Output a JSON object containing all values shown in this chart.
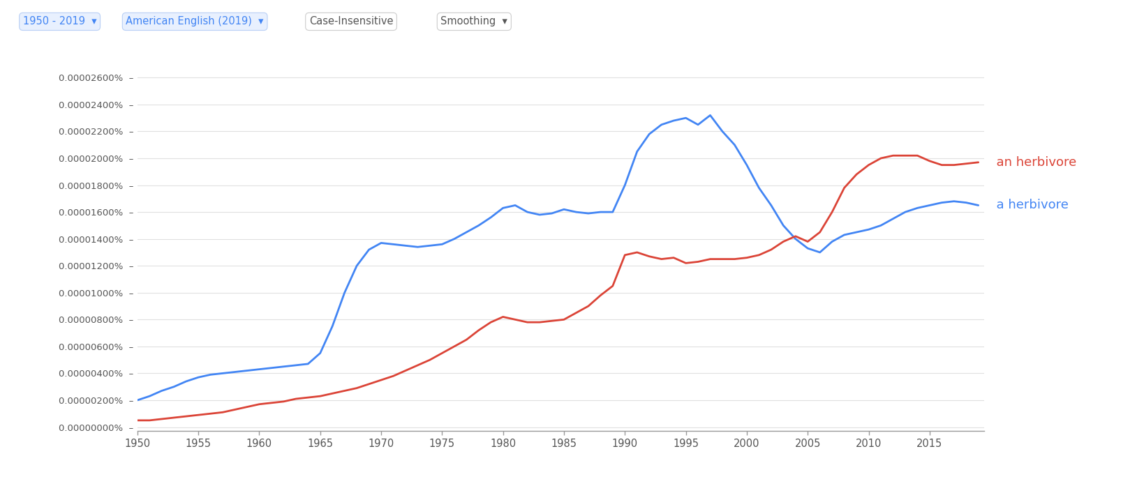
{
  "blue_color": "#4285f4",
  "red_color": "#db4437",
  "grid_color": "#e0e0e0",
  "axis_color": "#999999",
  "tick_label_color": "#555555",
  "background_color": "#ffffff",
  "label_an": "an herbivore",
  "label_a": "a herbivore",
  "toolbar_bg": "#f8f9fa",
  "toolbar_border": "#dadce0",
  "btn1_text": "1950 - 2019",
  "btn2_text": "American English (2019)",
  "btn3_text": "Case-Insensitive",
  "btn4_text": "Smoothing",
  "btn_color": "#e8f0fe",
  "btn_text_color": "#4285f4",
  "btn3_text_color": "#444444",
  "xticks": [
    1950,
    1955,
    1960,
    1965,
    1970,
    1975,
    1980,
    1985,
    1990,
    1995,
    2000,
    2005,
    2010,
    2015
  ],
  "ytick_vals": [
    0.0,
    2e-08,
    4e-08,
    6e-08,
    8e-08,
    1e-07,
    1.2e-07,
    1.4e-07,
    1.6e-07,
    1.8e-07,
    2e-07,
    2.2e-07,
    2.4e-07,
    2.6e-07
  ],
  "a_herbivore_x": [
    1950,
    1951,
    1952,
    1953,
    1954,
    1955,
    1956,
    1957,
    1958,
    1959,
    1960,
    1961,
    1962,
    1963,
    1964,
    1965,
    1966,
    1967,
    1968,
    1969,
    1970,
    1971,
    1972,
    1973,
    1974,
    1975,
    1976,
    1977,
    1978,
    1979,
    1980,
    1981,
    1982,
    1983,
    1984,
    1985,
    1986,
    1987,
    1988,
    1989,
    1990,
    1991,
    1992,
    1993,
    1994,
    1995,
    1996,
    1997,
    1998,
    1999,
    2000,
    2001,
    2002,
    2003,
    2004,
    2005,
    2006,
    2007,
    2008,
    2009,
    2010,
    2011,
    2012,
    2013,
    2014,
    2015,
    2016,
    2017,
    2018,
    2019
  ],
  "a_herbivore_y": [
    2e-08,
    2.3e-08,
    2.7e-08,
    3e-08,
    3.4e-08,
    3.7e-08,
    3.9e-08,
    4e-08,
    4.1e-08,
    4.2e-08,
    4.3e-08,
    4.4e-08,
    4.5e-08,
    4.6e-08,
    4.7e-08,
    5.5e-08,
    7.5e-08,
    1e-07,
    1.2e-07,
    1.32e-07,
    1.37e-07,
    1.36e-07,
    1.35e-07,
    1.34e-07,
    1.35e-07,
    1.36e-07,
    1.4e-07,
    1.45e-07,
    1.5e-07,
    1.56e-07,
    1.63e-07,
    1.65e-07,
    1.6e-07,
    1.58e-07,
    1.59e-07,
    1.62e-07,
    1.6e-07,
    1.59e-07,
    1.6e-07,
    1.6e-07,
    1.8e-07,
    2.05e-07,
    2.18e-07,
    2.25e-07,
    2.28e-07,
    2.3e-07,
    2.25e-07,
    2.32e-07,
    2.2e-07,
    2.1e-07,
    1.95e-07,
    1.78e-07,
    1.65e-07,
    1.5e-07,
    1.4e-07,
    1.33e-07,
    1.3e-07,
    1.38e-07,
    1.43e-07,
    1.45e-07,
    1.47e-07,
    1.5e-07,
    1.55e-07,
    1.6e-07,
    1.63e-07,
    1.65e-07,
    1.67e-07,
    1.68e-07,
    1.67e-07,
    1.65e-07
  ],
  "an_herbivore_x": [
    1950,
    1951,
    1952,
    1953,
    1954,
    1955,
    1956,
    1957,
    1958,
    1959,
    1960,
    1961,
    1962,
    1963,
    1964,
    1965,
    1966,
    1967,
    1968,
    1969,
    1970,
    1971,
    1972,
    1973,
    1974,
    1975,
    1976,
    1977,
    1978,
    1979,
    1980,
    1981,
    1982,
    1983,
    1984,
    1985,
    1986,
    1987,
    1988,
    1989,
    1990,
    1991,
    1992,
    1993,
    1994,
    1995,
    1996,
    1997,
    1998,
    1999,
    2000,
    2001,
    2002,
    2003,
    2004,
    2005,
    2006,
    2007,
    2008,
    2009,
    2010,
    2011,
    2012,
    2013,
    2014,
    2015,
    2016,
    2017,
    2018,
    2019
  ],
  "an_herbivore_y": [
    5e-09,
    5e-09,
    6e-09,
    7e-09,
    8e-09,
    9e-09,
    1e-08,
    1.1e-08,
    1.3e-08,
    1.5e-08,
    1.7e-08,
    1.8e-08,
    1.9e-08,
    2.1e-08,
    2.2e-08,
    2.3e-08,
    2.5e-08,
    2.7e-08,
    2.9e-08,
    3.2e-08,
    3.5e-08,
    3.8e-08,
    4.2e-08,
    4.6e-08,
    5e-08,
    5.5e-08,
    6e-08,
    6.5e-08,
    7.2e-08,
    7.8e-08,
    8.2e-08,
    8e-08,
    7.8e-08,
    7.8e-08,
    7.9e-08,
    8e-08,
    8.5e-08,
    9e-08,
    9.8e-08,
    1.05e-07,
    1.28e-07,
    1.3e-07,
    1.27e-07,
    1.25e-07,
    1.26e-07,
    1.22e-07,
    1.23e-07,
    1.25e-07,
    1.25e-07,
    1.25e-07,
    1.26e-07,
    1.28e-07,
    1.32e-07,
    1.38e-07,
    1.42e-07,
    1.38e-07,
    1.45e-07,
    1.6e-07,
    1.78e-07,
    1.88e-07,
    1.95e-07,
    2e-07,
    2.02e-07,
    2.02e-07,
    2.02e-07,
    1.98e-07,
    1.95e-07,
    1.95e-07,
    1.96e-07,
    1.97e-07
  ]
}
